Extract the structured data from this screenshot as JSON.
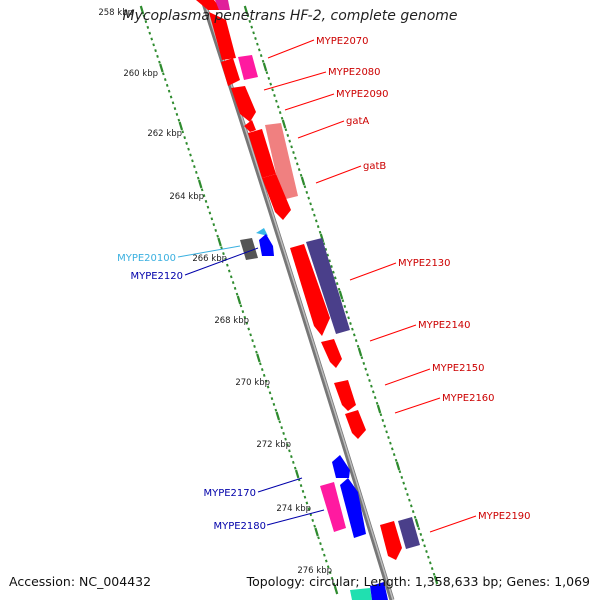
{
  "title": "Mycoplasma penetrans HF-2, complete genome",
  "footer": {
    "accession": "Accession: NC_004432",
    "topology": "Topology: circular; Length: 1,358,633 bp; Genes: 1,069"
  },
  "colors": {
    "background": "#ffffff",
    "backbone": "#8c8c8c",
    "tick": "#2e8b2e",
    "red_gene": "#ff0000",
    "dark_red_label": "#cc0000",
    "blue_label": "#0000aa",
    "cyan_label": "#3ab0e0"
  },
  "scale_labels": [
    "258 kbp",
    "260 kbp",
    "262 kbp",
    "264 kbp",
    "266 kbp",
    "268 kbp",
    "270 kbp",
    "272 kbp",
    "274 kbp",
    "276 kbp"
  ],
  "right_labels": [
    {
      "text": "MYPE2070",
      "color": "#cc0000"
    },
    {
      "text": "MYPE2080",
      "color": "#cc0000"
    },
    {
      "text": "MYPE2090",
      "color": "#cc0000"
    },
    {
      "text": "gatA",
      "color": "#cc0000"
    },
    {
      "text": "gatB",
      "color": "#cc0000"
    },
    {
      "text": "MYPE2130",
      "color": "#cc0000"
    },
    {
      "text": "MYPE2140",
      "color": "#cc0000"
    },
    {
      "text": "MYPE2150",
      "color": "#cc0000"
    },
    {
      "text": "MYPE2160",
      "color": "#cc0000"
    },
    {
      "text": "MYPE2190",
      "color": "#cc0000"
    }
  ],
  "left_labels": [
    {
      "text": "MYPE20100",
      "color": "#3ab0e0"
    },
    {
      "text": "MYPE2120",
      "color": "#0000aa"
    },
    {
      "text": "MYPE2170",
      "color": "#0000aa"
    },
    {
      "text": "MYPE2180",
      "color": "#0000aa"
    }
  ]
}
